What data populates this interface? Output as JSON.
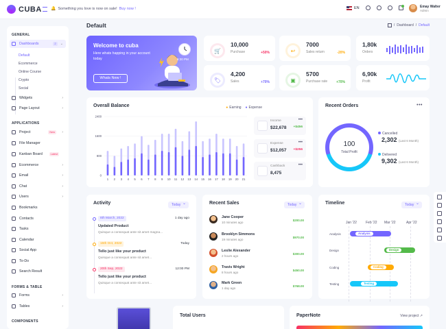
{
  "brand": {
    "name": "CUBA"
  },
  "header": {
    "notice": "Something you love is now on sale!",
    "notice_link": "Buy now !",
    "language": "EN",
    "user_name": "Emay Walter",
    "user_role": "Admin"
  },
  "sidebar": {
    "sections": [
      "GENERAL",
      "APPLICATIONS",
      "FORMS & TABLE",
      "COMPONENTS"
    ],
    "dashboards_label": "Dashboards",
    "dashboards_count": "2",
    "sub_items": [
      "Default",
      "Ecommerce",
      "Online Course",
      "Crypto",
      "Social"
    ],
    "general_items": [
      "Widgets",
      "Page Layout"
    ],
    "app_items": [
      "Project",
      "File Manager",
      "Kanban Board",
      "Ecommerce",
      "Email",
      "Chat",
      "Users",
      "Bookmarks",
      "Contacts",
      "Tasks",
      "Calendar",
      "Social App",
      "To-Do",
      "Search Result"
    ],
    "project_tag": "New",
    "kanban_tag": "Latest",
    "form_items": [
      "Forms",
      "Tables"
    ]
  },
  "page": {
    "title": "Default",
    "crumb_1": "Dashboard",
    "crumb_2": "Default"
  },
  "welcome": {
    "title": "Welcome to cuba",
    "subtitle": "Here whats happing in your account today",
    "button": "Whats New !",
    "time": "6:30 PM"
  },
  "stats": [
    {
      "value": "10,000",
      "label": "Purchase",
      "change": "+50%",
      "color": "#f73164"
    },
    {
      "value": "7000",
      "label": "Sales return",
      "change": "-20%",
      "color": "#ffaa05"
    },
    {
      "value": "4,200",
      "label": "Sales",
      "change": "+70%",
      "color": "#7366ff"
    },
    {
      "value": "5700",
      "label": "Purchase rate",
      "change": "+70%",
      "color": "#54ba4a"
    }
  ],
  "side_stats": [
    {
      "value": "1,80k",
      "label": "Orders"
    },
    {
      "value": "6,90k",
      "label": "Profit"
    }
  ],
  "balance": {
    "title": "Overall Balance",
    "legend": [
      "Earning",
      "Expense"
    ],
    "mini": [
      {
        "label": "Income",
        "value": "$22,678",
        "change": "+$456",
        "color": "#54ba4a"
      },
      {
        "label": "Expense",
        "value": "$12,057",
        "change": "+$256",
        "color": "#f73164"
      },
      {
        "label": "Cashback",
        "value": "8,475",
        "change": ""
      }
    ]
  },
  "chart_data": {
    "type": "bar",
    "title": "Overall Balance",
    "categories": [
      "1",
      "2",
      "3",
      "4",
      "5",
      "6",
      "7",
      "8",
      "9",
      "10",
      "11",
      "12",
      "13",
      "14",
      "15",
      "16",
      "17",
      "18",
      "19",
      "20",
      "21"
    ],
    "ylim": [
      0,
      2400
    ],
    "yticks": [
      "2400",
      "1600",
      "800",
      "0"
    ],
    "series": [
      {
        "name": "Earning",
        "values": [
          1000,
          800,
          1100,
          1200,
          1300,
          1600,
          1250,
          1450,
          1700,
          1700,
          1900,
          1400,
          1800,
          2200,
          1400,
          1500,
          1700,
          1500,
          1500,
          1200,
          1300
        ]
      },
      {
        "name": "Expense",
        "values": [
          450,
          350,
          550,
          650,
          700,
          900,
          650,
          850,
          1000,
          950,
          1150,
          800,
          1050,
          1200,
          750,
          850,
          950,
          900,
          900,
          650,
          750
        ]
      }
    ],
    "legend_position": "top-right",
    "grid": true
  },
  "orders": {
    "title": "Recent Orders",
    "center_value": "100",
    "center_label": "Total Profit",
    "rows": [
      {
        "label": "Cancelled",
        "value": "2,302",
        "sub": "(Last 6 Month)",
        "color": "#7366ff"
      },
      {
        "label": "Delivered",
        "value": "9,302",
        "sub": "(Last 6 Month)",
        "color": "#16c7f9"
      }
    ]
  },
  "activity": {
    "title": "Activity",
    "filter": "Today",
    "items": [
      {
        "date": "8th March, 2022",
        "time": "1 day ago",
        "title": "Updated Product",
        "text": "Quisque a consequat ante sit amet magna...",
        "color": "#7366ff"
      },
      {
        "date": "15th Oct, 2022",
        "time": "Today",
        "title": "Tello just like your product",
        "text": "Quisque a consequat ante sit amet...",
        "color": "#ffaa05"
      },
      {
        "date": "20th Sep, 2022",
        "time": "12:00 PM",
        "title": "Tello just like your product",
        "text": "Quisque a consequat ante sit amet...",
        "color": "#f73164"
      }
    ]
  },
  "sales": {
    "title": "Recent Sales",
    "filter": "Today",
    "items": [
      {
        "name": "Jane Cooper",
        "time": "10 minutes ago",
        "amount": "$200.00"
      },
      {
        "name": "Brooklyn Simmons",
        "time": "19 minutes ago",
        "amount": "$970.00"
      },
      {
        "name": "Leslie Alexander",
        "time": "2 hours ago",
        "amount": "$300.00"
      },
      {
        "name": "Travis Wright",
        "time": "8 hours ago",
        "amount": "$450.00"
      },
      {
        "name": "Mark Green",
        "time": "1 day ago",
        "amount": "$768.00"
      }
    ]
  },
  "timeline": {
    "title": "Timeline",
    "filter": "Today",
    "months": [
      "Jan '22",
      "Feb '22",
      "Mar '22",
      "Apr '22"
    ],
    "rows": [
      {
        "label": "Analysis",
        "tag": "Analysis",
        "color": "#7366ff"
      },
      {
        "label": "Design",
        "tag": "Design",
        "color": "#54ba4a"
      },
      {
        "label": "Coding",
        "tag": "Coding",
        "color": "#ffaa05"
      },
      {
        "label": "Testing",
        "tag": "Testing",
        "color": "#16c7f9"
      }
    ]
  },
  "bottom": {
    "total_users": "Total Users",
    "paper_note": "PaperNote",
    "view_project": "View project ↗"
  }
}
